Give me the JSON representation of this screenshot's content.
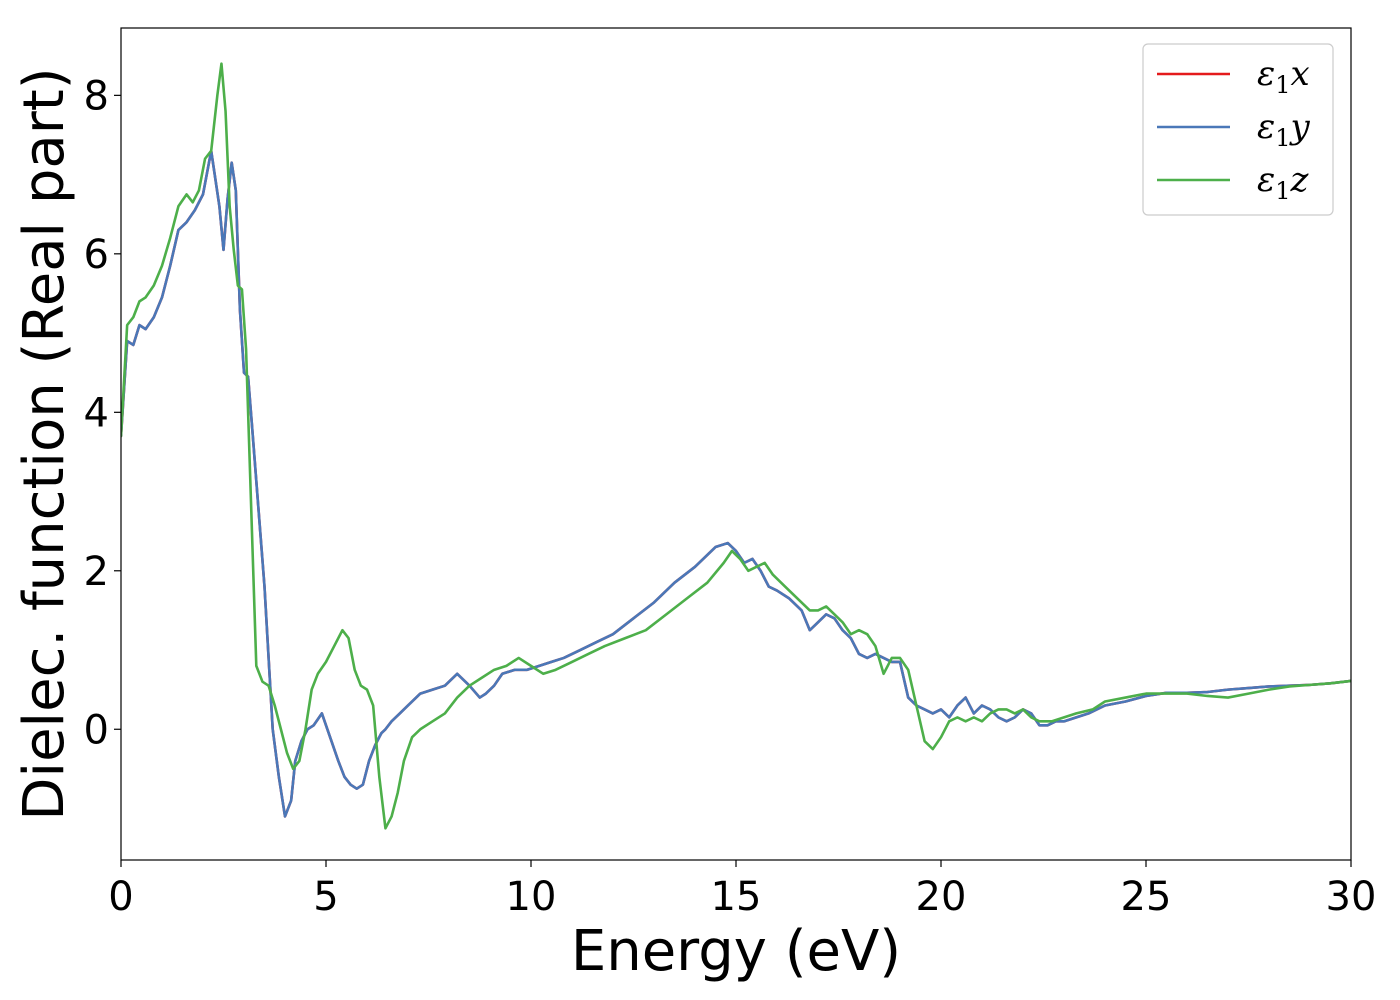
{
  "chart_data": {
    "type": "line",
    "xlabel": "Energy (eV)",
    "ylabel": "Dielec. function (Real part)",
    "xlim": [
      0,
      30
    ],
    "ylim": [
      -1.65,
      8.85
    ],
    "xticks": [
      0,
      5,
      10,
      15,
      20,
      25,
      30
    ],
    "xtick_labels": [
      "0",
      "5",
      "10",
      "15",
      "20",
      "25",
      "30"
    ],
    "yticks": [
      0,
      2,
      4,
      6,
      8
    ],
    "ytick_labels": [
      "0",
      "2",
      "4",
      "6",
      "8"
    ],
    "grid": false,
    "legend_position": "top-right",
    "series": [
      {
        "name": "ε₁x",
        "legend_base": "ε",
        "legend_sub": "1",
        "legend_suffix": "x",
        "color": "#e41a1c",
        "x": [
          0,
          0.15,
          0.3,
          0.45,
          0.6,
          0.8,
          1.0,
          1.2,
          1.4,
          1.6,
          1.8,
          2.0,
          2.2,
          2.4,
          2.5,
          2.6,
          2.7,
          2.8,
          2.9,
          3.0,
          3.1,
          3.2,
          3.35,
          3.5,
          3.6,
          3.7,
          3.85,
          4.0,
          4.15,
          4.25,
          4.4,
          4.55,
          4.7,
          4.9,
          5.1,
          5.3,
          5.45,
          5.6,
          5.75,
          5.9,
          6.05,
          6.2,
          6.35,
          6.45,
          6.6,
          6.8,
          7.0,
          7.3,
          7.6,
          7.9,
          8.2,
          8.5,
          8.75,
          8.9,
          9.1,
          9.3,
          9.6,
          9.9,
          10.2,
          10.5,
          10.8,
          11.2,
          11.6,
          12.0,
          12.5,
          13.0,
          13.5,
          14.0,
          14.5,
          14.8,
          15.0,
          15.2,
          15.4,
          15.6,
          15.8,
          16.0,
          16.3,
          16.6,
          16.8,
          17.0,
          17.2,
          17.4,
          17.6,
          17.8,
          18.0,
          18.2,
          18.4,
          18.6,
          18.8,
          19.0,
          19.2,
          19.4,
          19.6,
          19.8,
          20.0,
          20.2,
          20.4,
          20.6,
          20.8,
          21.0,
          21.2,
          21.4,
          21.6,
          21.8,
          22.0,
          22.2,
          22.4,
          22.6,
          22.8,
          23.0,
          23.3,
          23.6,
          24.0,
          24.5,
          25.0,
          25.5,
          26.0,
          26.5,
          27.0,
          27.5,
          28.0,
          28.5,
          29.0,
          29.5,
          30.0
        ],
        "y": [
          3.7,
          4.9,
          4.85,
          5.1,
          5.05,
          5.2,
          5.45,
          5.85,
          6.3,
          6.4,
          6.55,
          6.75,
          7.3,
          6.6,
          6.05,
          6.7,
          7.15,
          6.8,
          5.3,
          4.5,
          4.45,
          3.8,
          2.8,
          1.8,
          0.9,
          0.0,
          -0.6,
          -1.1,
          -0.9,
          -0.4,
          -0.15,
          0.0,
          0.05,
          0.2,
          -0.1,
          -0.4,
          -0.6,
          -0.7,
          -0.75,
          -0.7,
          -0.4,
          -0.2,
          -0.05,
          0.0,
          0.1,
          0.2,
          0.3,
          0.45,
          0.5,
          0.55,
          0.7,
          0.55,
          0.4,
          0.45,
          0.55,
          0.7,
          0.75,
          0.75,
          0.8,
          0.85,
          0.9,
          1.0,
          1.1,
          1.2,
          1.4,
          1.6,
          1.85,
          2.05,
          2.3,
          2.35,
          2.25,
          2.1,
          2.15,
          2.0,
          1.8,
          1.75,
          1.65,
          1.5,
          1.25,
          1.35,
          1.45,
          1.4,
          1.25,
          1.15,
          0.95,
          0.9,
          0.95,
          0.9,
          0.85,
          0.85,
          0.4,
          0.3,
          0.25,
          0.2,
          0.25,
          0.15,
          0.3,
          0.4,
          0.2,
          0.3,
          0.25,
          0.15,
          0.1,
          0.15,
          0.25,
          0.2,
          0.05,
          0.05,
          0.1,
          0.1,
          0.15,
          0.2,
          0.3,
          0.35,
          0.42,
          0.46,
          0.46,
          0.47,
          0.5,
          0.52,
          0.54,
          0.55,
          0.56,
          0.58,
          0.61
        ]
      },
      {
        "name": "ε₁y",
        "legend_base": "ε",
        "legend_sub": "1",
        "legend_suffix": "y",
        "color": "#4a78b8",
        "x": [
          0,
          0.15,
          0.3,
          0.45,
          0.6,
          0.8,
          1.0,
          1.2,
          1.4,
          1.6,
          1.8,
          2.0,
          2.2,
          2.4,
          2.5,
          2.6,
          2.7,
          2.8,
          2.9,
          3.0,
          3.1,
          3.2,
          3.35,
          3.5,
          3.6,
          3.7,
          3.85,
          4.0,
          4.15,
          4.25,
          4.4,
          4.55,
          4.7,
          4.9,
          5.1,
          5.3,
          5.45,
          5.6,
          5.75,
          5.9,
          6.05,
          6.2,
          6.35,
          6.45,
          6.6,
          6.8,
          7.0,
          7.3,
          7.6,
          7.9,
          8.2,
          8.5,
          8.75,
          8.9,
          9.1,
          9.3,
          9.6,
          9.9,
          10.2,
          10.5,
          10.8,
          11.2,
          11.6,
          12.0,
          12.5,
          13.0,
          13.5,
          14.0,
          14.5,
          14.8,
          15.0,
          15.2,
          15.4,
          15.6,
          15.8,
          16.0,
          16.3,
          16.6,
          16.8,
          17.0,
          17.2,
          17.4,
          17.6,
          17.8,
          18.0,
          18.2,
          18.4,
          18.6,
          18.8,
          19.0,
          19.2,
          19.4,
          19.6,
          19.8,
          20.0,
          20.2,
          20.4,
          20.6,
          20.8,
          21.0,
          21.2,
          21.4,
          21.6,
          21.8,
          22.0,
          22.2,
          22.4,
          22.6,
          22.8,
          23.0,
          23.3,
          23.6,
          24.0,
          24.5,
          25.0,
          25.5,
          26.0,
          26.5,
          27.0,
          27.5,
          28.0,
          28.5,
          29.0,
          29.5,
          30.0
        ],
        "y": [
          3.7,
          4.9,
          4.85,
          5.1,
          5.05,
          5.2,
          5.45,
          5.85,
          6.3,
          6.4,
          6.55,
          6.75,
          7.3,
          6.6,
          6.05,
          6.7,
          7.15,
          6.8,
          5.3,
          4.5,
          4.45,
          3.8,
          2.8,
          1.8,
          0.9,
          0.0,
          -0.6,
          -1.1,
          -0.9,
          -0.4,
          -0.15,
          0.0,
          0.05,
          0.2,
          -0.1,
          -0.4,
          -0.6,
          -0.7,
          -0.75,
          -0.7,
          -0.4,
          -0.2,
          -0.05,
          0.0,
          0.1,
          0.2,
          0.3,
          0.45,
          0.5,
          0.55,
          0.7,
          0.55,
          0.4,
          0.45,
          0.55,
          0.7,
          0.75,
          0.75,
          0.8,
          0.85,
          0.9,
          1.0,
          1.1,
          1.2,
          1.4,
          1.6,
          1.85,
          2.05,
          2.3,
          2.35,
          2.25,
          2.1,
          2.15,
          2.0,
          1.8,
          1.75,
          1.65,
          1.5,
          1.25,
          1.35,
          1.45,
          1.4,
          1.25,
          1.15,
          0.95,
          0.9,
          0.95,
          0.9,
          0.85,
          0.85,
          0.4,
          0.3,
          0.25,
          0.2,
          0.25,
          0.15,
          0.3,
          0.4,
          0.2,
          0.3,
          0.25,
          0.15,
          0.1,
          0.15,
          0.25,
          0.2,
          0.05,
          0.05,
          0.1,
          0.1,
          0.15,
          0.2,
          0.3,
          0.35,
          0.42,
          0.46,
          0.46,
          0.47,
          0.5,
          0.52,
          0.54,
          0.55,
          0.56,
          0.58,
          0.61
        ]
      },
      {
        "name": "ε₁z",
        "legend_base": "ε",
        "legend_sub": "1",
        "legend_suffix": "z",
        "color": "#4daf4a",
        "x": [
          0,
          0.15,
          0.3,
          0.45,
          0.6,
          0.8,
          1.0,
          1.2,
          1.4,
          1.6,
          1.75,
          1.9,
          2.05,
          2.2,
          2.35,
          2.45,
          2.55,
          2.65,
          2.75,
          2.85,
          2.95,
          3.05,
          3.15,
          3.3,
          3.45,
          3.6,
          3.75,
          3.9,
          4.05,
          4.2,
          4.35,
          4.5,
          4.65,
          4.8,
          5.0,
          5.2,
          5.4,
          5.55,
          5.7,
          5.85,
          6.0,
          6.15,
          6.3,
          6.45,
          6.6,
          6.75,
          6.9,
          7.1,
          7.3,
          7.6,
          7.9,
          8.2,
          8.5,
          8.8,
          9.1,
          9.4,
          9.7,
          10.0,
          10.3,
          10.6,
          11.0,
          11.4,
          11.8,
          12.3,
          12.8,
          13.3,
          13.8,
          14.3,
          14.7,
          14.9,
          15.1,
          15.3,
          15.5,
          15.7,
          15.9,
          16.2,
          16.5,
          16.8,
          17.0,
          17.2,
          17.4,
          17.6,
          17.8,
          18.0,
          18.2,
          18.4,
          18.6,
          18.8,
          19.0,
          19.2,
          19.4,
          19.6,
          19.8,
          20.0,
          20.2,
          20.4,
          20.6,
          20.8,
          21.0,
          21.2,
          21.4,
          21.6,
          21.8,
          22.0,
          22.2,
          22.4,
          22.7,
          23.0,
          23.3,
          23.7,
          24.0,
          24.5,
          25.0,
          25.5,
          26.0,
          26.5,
          27.0,
          27.5,
          28.0,
          28.5,
          29.0,
          29.5,
          30.0
        ],
        "y": [
          3.7,
          5.1,
          5.2,
          5.4,
          5.45,
          5.6,
          5.85,
          6.2,
          6.6,
          6.75,
          6.65,
          6.8,
          7.2,
          7.3,
          8.0,
          8.4,
          7.8,
          6.6,
          6.05,
          5.6,
          5.55,
          4.8,
          3.2,
          0.8,
          0.6,
          0.55,
          0.3,
          0.0,
          -0.3,
          -0.5,
          -0.4,
          0.0,
          0.5,
          0.7,
          0.85,
          1.05,
          1.25,
          1.15,
          0.75,
          0.55,
          0.5,
          0.3,
          -0.6,
          -1.25,
          -1.1,
          -0.8,
          -0.4,
          -0.1,
          0.0,
          0.1,
          0.2,
          0.4,
          0.55,
          0.65,
          0.75,
          0.8,
          0.9,
          0.8,
          0.7,
          0.75,
          0.85,
          0.95,
          1.05,
          1.15,
          1.25,
          1.45,
          1.65,
          1.85,
          2.1,
          2.25,
          2.15,
          2.0,
          2.05,
          2.1,
          1.95,
          1.8,
          1.65,
          1.5,
          1.5,
          1.55,
          1.45,
          1.35,
          1.2,
          1.25,
          1.2,
          1.05,
          0.7,
          0.9,
          0.9,
          0.75,
          0.3,
          -0.15,
          -0.25,
          -0.1,
          0.1,
          0.15,
          0.1,
          0.15,
          0.1,
          0.2,
          0.25,
          0.25,
          0.2,
          0.25,
          0.15,
          0.1,
          0.1,
          0.15,
          0.2,
          0.25,
          0.35,
          0.4,
          0.45,
          0.45,
          0.45,
          0.42,
          0.4,
          0.45,
          0.5,
          0.54,
          0.56,
          0.58,
          0.61
        ]
      }
    ]
  }
}
